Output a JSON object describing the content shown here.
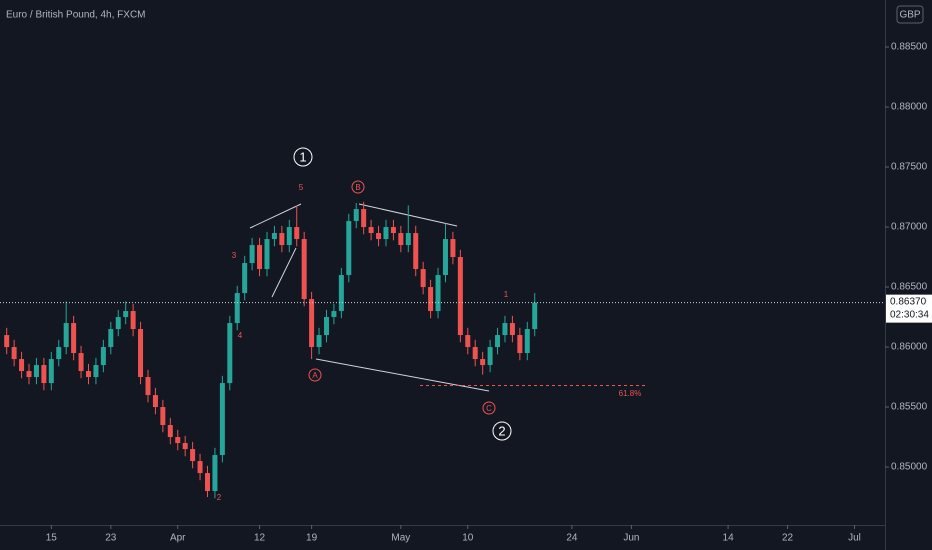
{
  "chart_data": {
    "type": "candlestick",
    "title": "Euro / British Pound, 4h, FXCM",
    "currency": "GBP",
    "up_color": "#26a69a",
    "down_color": "#ef5350",
    "x": [
      9,
      10,
      11,
      12,
      13,
      14,
      15,
      16,
      17,
      18,
      19,
      20,
      21,
      22,
      23,
      24,
      25,
      26,
      27,
      28,
      29,
      30,
      31,
      32,
      33,
      34,
      35,
      36,
      37,
      38,
      39,
      40,
      41,
      42,
      43,
      44,
      45,
      46,
      47,
      48,
      49,
      50,
      51,
      52,
      53,
      54,
      55,
      56,
      57,
      58,
      59,
      60,
      61,
      62,
      63,
      64,
      65,
      66,
      67,
      68,
      69,
      70,
      71,
      72,
      73,
      74,
      75,
      76,
      77,
      78,
      79,
      80
    ],
    "open": [
      0.861,
      0.86,
      0.859,
      0.858,
      0.8575,
      0.8585,
      0.857,
      0.859,
      0.86,
      0.862,
      0.8595,
      0.858,
      0.8575,
      0.8585,
      0.86,
      0.8615,
      0.8625,
      0.863,
      0.8615,
      0.8575,
      0.856,
      0.855,
      0.8535,
      0.8525,
      0.852,
      0.8515,
      0.8505,
      0.8495,
      0.848,
      0.851,
      0.857,
      0.862,
      0.8645,
      0.867,
      0.8685,
      0.8665,
      0.869,
      0.8695,
      0.8685,
      0.87,
      0.869,
      0.864,
      0.86,
      0.861,
      0.8625,
      0.863,
      0.866,
      0.8705,
      0.8715,
      0.87,
      0.8695,
      0.869,
      0.87,
      0.8695,
      0.8685,
      0.8695,
      0.8665,
      0.865,
      0.863,
      0.866,
      0.869,
      0.8675,
      0.861,
      0.86,
      0.859,
      0.8585,
      0.86,
      0.861,
      0.862,
      0.861,
      0.8595,
      0.8615
    ],
    "high": [
      0.8616,
      0.8606,
      0.8596,
      0.8586,
      0.8591,
      0.8591,
      0.8596,
      0.8606,
      0.8638,
      0.8626,
      0.8601,
      0.8586,
      0.8591,
      0.8606,
      0.8621,
      0.8631,
      0.8638,
      0.8636,
      0.8621,
      0.8581,
      0.8566,
      0.8556,
      0.8541,
      0.8531,
      0.8526,
      0.8521,
      0.8511,
      0.8501,
      0.8516,
      0.8576,
      0.8626,
      0.8651,
      0.8676,
      0.8691,
      0.8691,
      0.8696,
      0.8701,
      0.8701,
      0.8706,
      0.8718,
      0.8696,
      0.8646,
      0.8616,
      0.8631,
      0.8636,
      0.8666,
      0.8711,
      0.872,
      0.8721,
      0.8706,
      0.8701,
      0.8706,
      0.8706,
      0.8701,
      0.8718,
      0.8701,
      0.8671,
      0.8656,
      0.8666,
      0.8703,
      0.8696,
      0.8681,
      0.8616,
      0.8606,
      0.8596,
      0.8606,
      0.8616,
      0.8626,
      0.8626,
      0.8616,
      0.8621,
      0.8645
    ],
    "low": [
      0.8594,
      0.8584,
      0.8574,
      0.8569,
      0.8569,
      0.8564,
      0.8564,
      0.8584,
      0.8594,
      0.8589,
      0.8574,
      0.8569,
      0.8569,
      0.8579,
      0.8594,
      0.8609,
      0.8619,
      0.8609,
      0.8569,
      0.8554,
      0.8544,
      0.8529,
      0.8519,
      0.8514,
      0.8509,
      0.8499,
      0.8489,
      0.8475,
      0.8474,
      0.8504,
      0.8564,
      0.8614,
      0.8639,
      0.8664,
      0.8659,
      0.8659,
      0.8684,
      0.8679,
      0.8679,
      0.8684,
      0.8634,
      0.859,
      0.8594,
      0.8604,
      0.8619,
      0.8624,
      0.8654,
      0.8699,
      0.8694,
      0.8689,
      0.8684,
      0.8684,
      0.8689,
      0.8679,
      0.8679,
      0.8659,
      0.8644,
      0.8624,
      0.8624,
      0.8654,
      0.8669,
      0.8604,
      0.8594,
      0.8584,
      0.8577,
      0.8579,
      0.8594,
      0.8604,
      0.8604,
      0.8589,
      0.8589,
      0.8609
    ],
    "close": [
      0.86,
      0.859,
      0.858,
      0.8575,
      0.8585,
      0.857,
      0.859,
      0.86,
      0.862,
      0.8595,
      0.858,
      0.8575,
      0.8585,
      0.86,
      0.8615,
      0.8625,
      0.863,
      0.8615,
      0.8575,
      0.856,
      0.855,
      0.8535,
      0.8525,
      0.852,
      0.8515,
      0.8505,
      0.8495,
      0.848,
      0.851,
      0.857,
      0.862,
      0.8645,
      0.867,
      0.8685,
      0.8665,
      0.869,
      0.8695,
      0.8685,
      0.87,
      0.869,
      0.864,
      0.86,
      0.861,
      0.8625,
      0.863,
      0.866,
      0.8705,
      0.8715,
      0.87,
      0.8695,
      0.869,
      0.87,
      0.8695,
      0.8685,
      0.8695,
      0.8665,
      0.865,
      0.863,
      0.866,
      0.869,
      0.8675,
      0.861,
      0.86,
      0.859,
      0.8585,
      0.86,
      0.861,
      0.862,
      0.861,
      0.8595,
      0.8615,
      0.8637
    ],
    "xlim": [
      8.1,
      127.1
    ],
    "xticks": [
      {
        "value": 15,
        "label": "15"
      },
      {
        "value": 23,
        "label": "23"
      },
      {
        "value": 32,
        "label": "Apr"
      },
      {
        "value": 43,
        "label": "12"
      },
      {
        "value": 50,
        "label": "19"
      },
      {
        "value": 62,
        "label": "May"
      },
      {
        "value": 71,
        "label": "10"
      },
      {
        "value": 85,
        "label": "24"
      },
      {
        "value": 93,
        "label": "Jun"
      },
      {
        "value": 106,
        "label": "14"
      },
      {
        "value": 114,
        "label": "22"
      },
      {
        "value": 123,
        "label": "Jul"
      }
    ],
    "ylim": [
      0.84517,
      0.88892
    ],
    "yticks": [
      {
        "value": 0.885,
        "label": "0.88500"
      },
      {
        "value": 0.88,
        "label": "0.88000"
      },
      {
        "value": 0.875,
        "label": "0.87500"
      },
      {
        "value": 0.87,
        "label": "0.87000"
      },
      {
        "value": 0.865,
        "label": "0.86500"
      },
      {
        "value": 0.86,
        "label": "0.86000"
      },
      {
        "value": 0.855,
        "label": "0.85500"
      },
      {
        "value": 0.85,
        "label": "0.85000"
      }
    ],
    "last_price": {
      "value": 0.8637,
      "label": "0.86370"
    },
    "countdown": "02:30:34",
    "annotations": [
      "1",
      "5",
      "B",
      "3",
      "4",
      "A",
      "2",
      "1",
      "C",
      "2"
    ],
    "fib_label": "61.8%"
  }
}
